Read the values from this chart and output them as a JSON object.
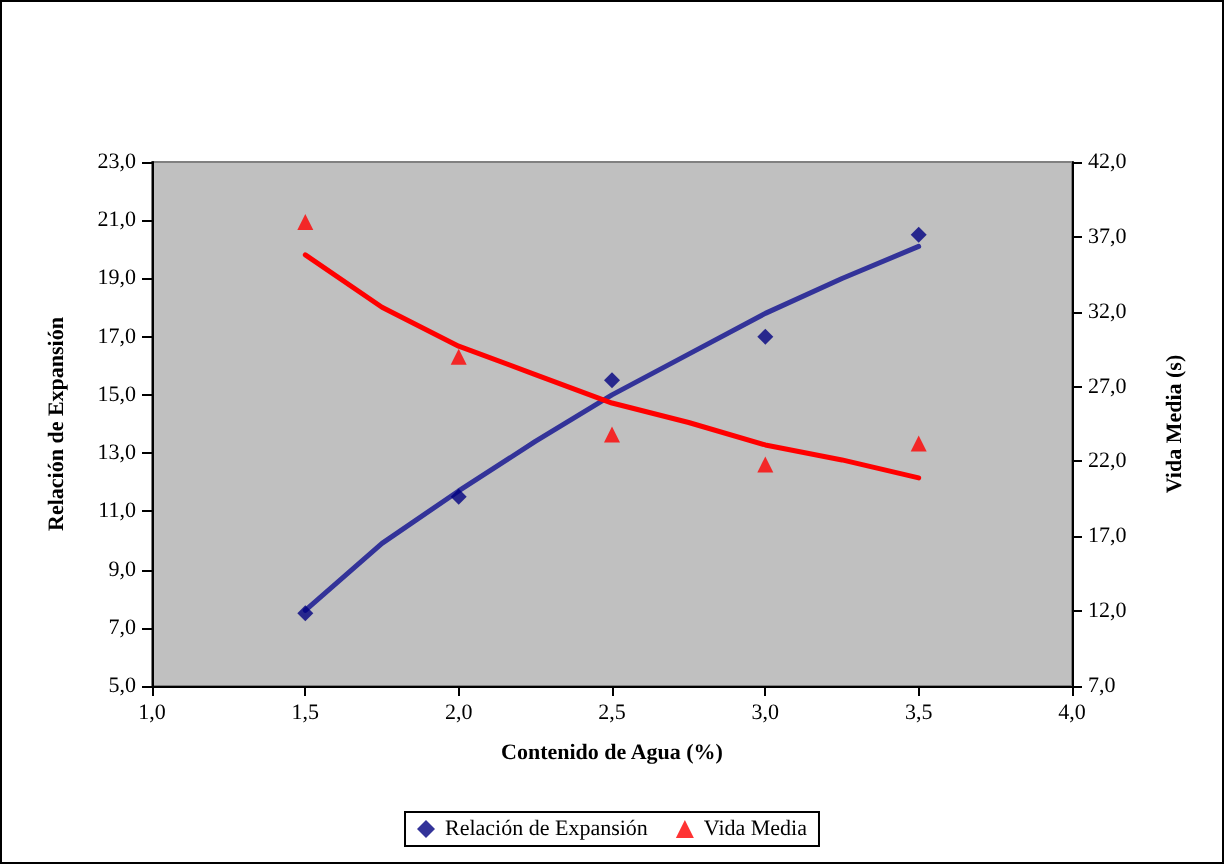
{
  "chart_data": {
    "type": "scatter",
    "xlabel": "Contenido de Agua (%)",
    "ylabel": "Relación de Expansión",
    "y2label": "Vida Media (s)",
    "x": [
      1.5,
      2.0,
      2.5,
      3.0,
      3.5
    ],
    "series": [
      {
        "name": "Relación de Expansión",
        "color": "#000080",
        "marker": "diamond",
        "values": [
          7.5,
          11.5,
          15.5,
          17.0,
          20.5
        ]
      },
      {
        "name": "Vida Media",
        "color": "#ff0000",
        "marker": "triangle",
        "axis": "y2",
        "values": [
          38.0,
          29.0,
          23.8,
          21.8,
          23.2
        ]
      },
      {
        "type": "line",
        "color": "#333399",
        "marker": "none",
        "x": [
          1.5,
          1.75,
          2.0,
          2.25,
          2.5,
          2.75,
          3.0,
          3.25,
          3.5
        ],
        "values": [
          7.6,
          9.9,
          11.7,
          13.4,
          15.0,
          16.4,
          17.8,
          19.0,
          20.1
        ]
      },
      {
        "type": "line",
        "color": "#ff0000",
        "marker": "none",
        "axis": "y2",
        "x": [
          1.5,
          1.75,
          2.0,
          2.25,
          2.5,
          2.75,
          3.0,
          3.25,
          3.5
        ],
        "values": [
          35.8,
          32.3,
          29.7,
          27.8,
          25.9,
          24.6,
          23.1,
          22.1,
          20.9
        ]
      }
    ],
    "xlim": [
      1.0,
      4.0
    ],
    "xticks": [
      {
        "value": 1.0,
        "label": "1,0"
      },
      {
        "value": 1.5,
        "label": "1,5"
      },
      {
        "value": 2.0,
        "label": "2,0"
      },
      {
        "value": 2.5,
        "label": "2,5"
      },
      {
        "value": 3.0,
        "label": "3,0"
      },
      {
        "value": 3.5,
        "label": "3,5"
      },
      {
        "value": 4.0,
        "label": "4,0"
      }
    ],
    "ylim": [
      5.0,
      23.0
    ],
    "yticks": [
      {
        "value": 5,
        "label": "5,0"
      },
      {
        "value": 7,
        "label": "7,0"
      },
      {
        "value": 9,
        "label": "9,0"
      },
      {
        "value": 11,
        "label": "11,0"
      },
      {
        "value": 13,
        "label": "13,0"
      },
      {
        "value": 15,
        "label": "15,0"
      },
      {
        "value": 17,
        "label": "17,0"
      },
      {
        "value": 19,
        "label": "19,0"
      },
      {
        "value": 21,
        "label": "21,0"
      },
      {
        "value": 23,
        "label": "23,0"
      }
    ],
    "y2lim": [
      7.0,
      42.0
    ],
    "y2ticks": [
      {
        "value": 7,
        "label": "7,0"
      },
      {
        "value": 12,
        "label": "12,0"
      },
      {
        "value": 17,
        "label": "17,0"
      },
      {
        "value": 22,
        "label": "22,0"
      },
      {
        "value": 27,
        "label": "27,0"
      },
      {
        "value": 32,
        "label": "32,0"
      },
      {
        "value": 37,
        "label": "37,0"
      },
      {
        "value": 42,
        "label": "42,0"
      }
    ],
    "grid": false,
    "legend": "bottom"
  }
}
